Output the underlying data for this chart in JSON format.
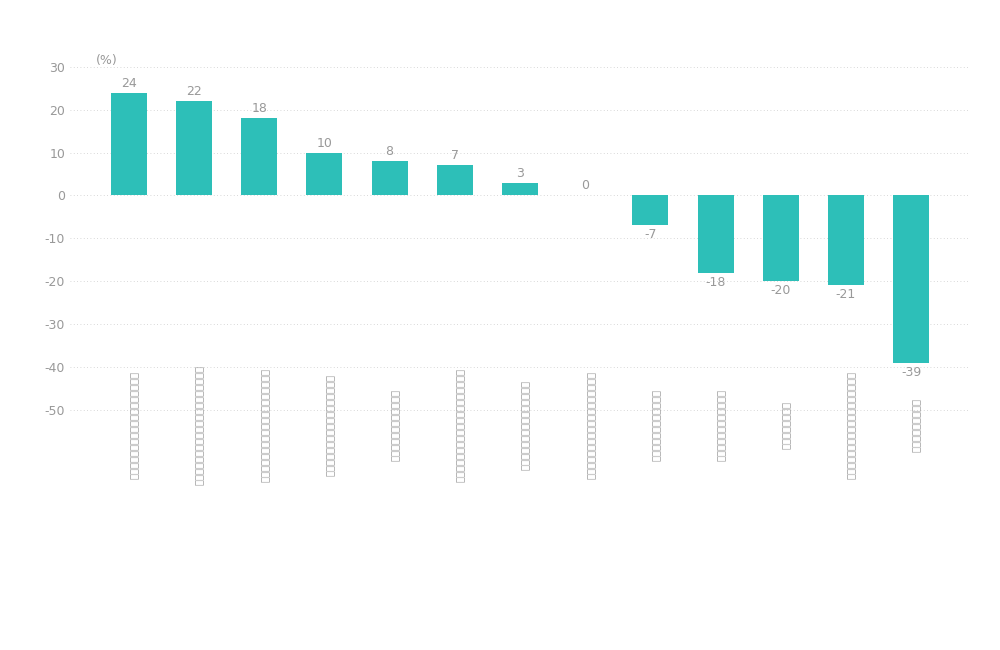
{
  "categories": [
    "経営者と社員・部門間の一体感・連帯感",
    "個別ニーズにきめ細かく応じる柔軟な対応力",
    "経営における迅速かつ大胆な意思決定能力",
    "市場等への変化に迅速な対応・機動力",
    "独創的な技術・事業モデル",
    "顧客・ユーザー等への提案力・課題解決力",
    "社員のやる気力を引き出す仕組み",
    "必要に応じた人材の素数な確保・活用力",
    "優秀な人材の育成・活用力",
    "優れた設備の整備・活用力",
    "必要資金の調達力",
    "豊富な種類の商品・サービスの品ぞろえ",
    "規模の経済性を発揮"
  ],
  "values": [
    24,
    22,
    18,
    10,
    8,
    7,
    3,
    0,
    -7,
    -18,
    -20,
    -21,
    -39
  ],
  "bar_color": "#2dbfb8",
  "ylabel": "(%)",
  "yticks": [
    30,
    20,
    10,
    0,
    -10,
    -20,
    -30,
    -40,
    -50
  ],
  "ylim": [
    -53,
    35
  ],
  "background_color": "#ffffff",
  "grid_color": "#cccccc",
  "label_color": "#999999",
  "value_label_color": "#999999"
}
